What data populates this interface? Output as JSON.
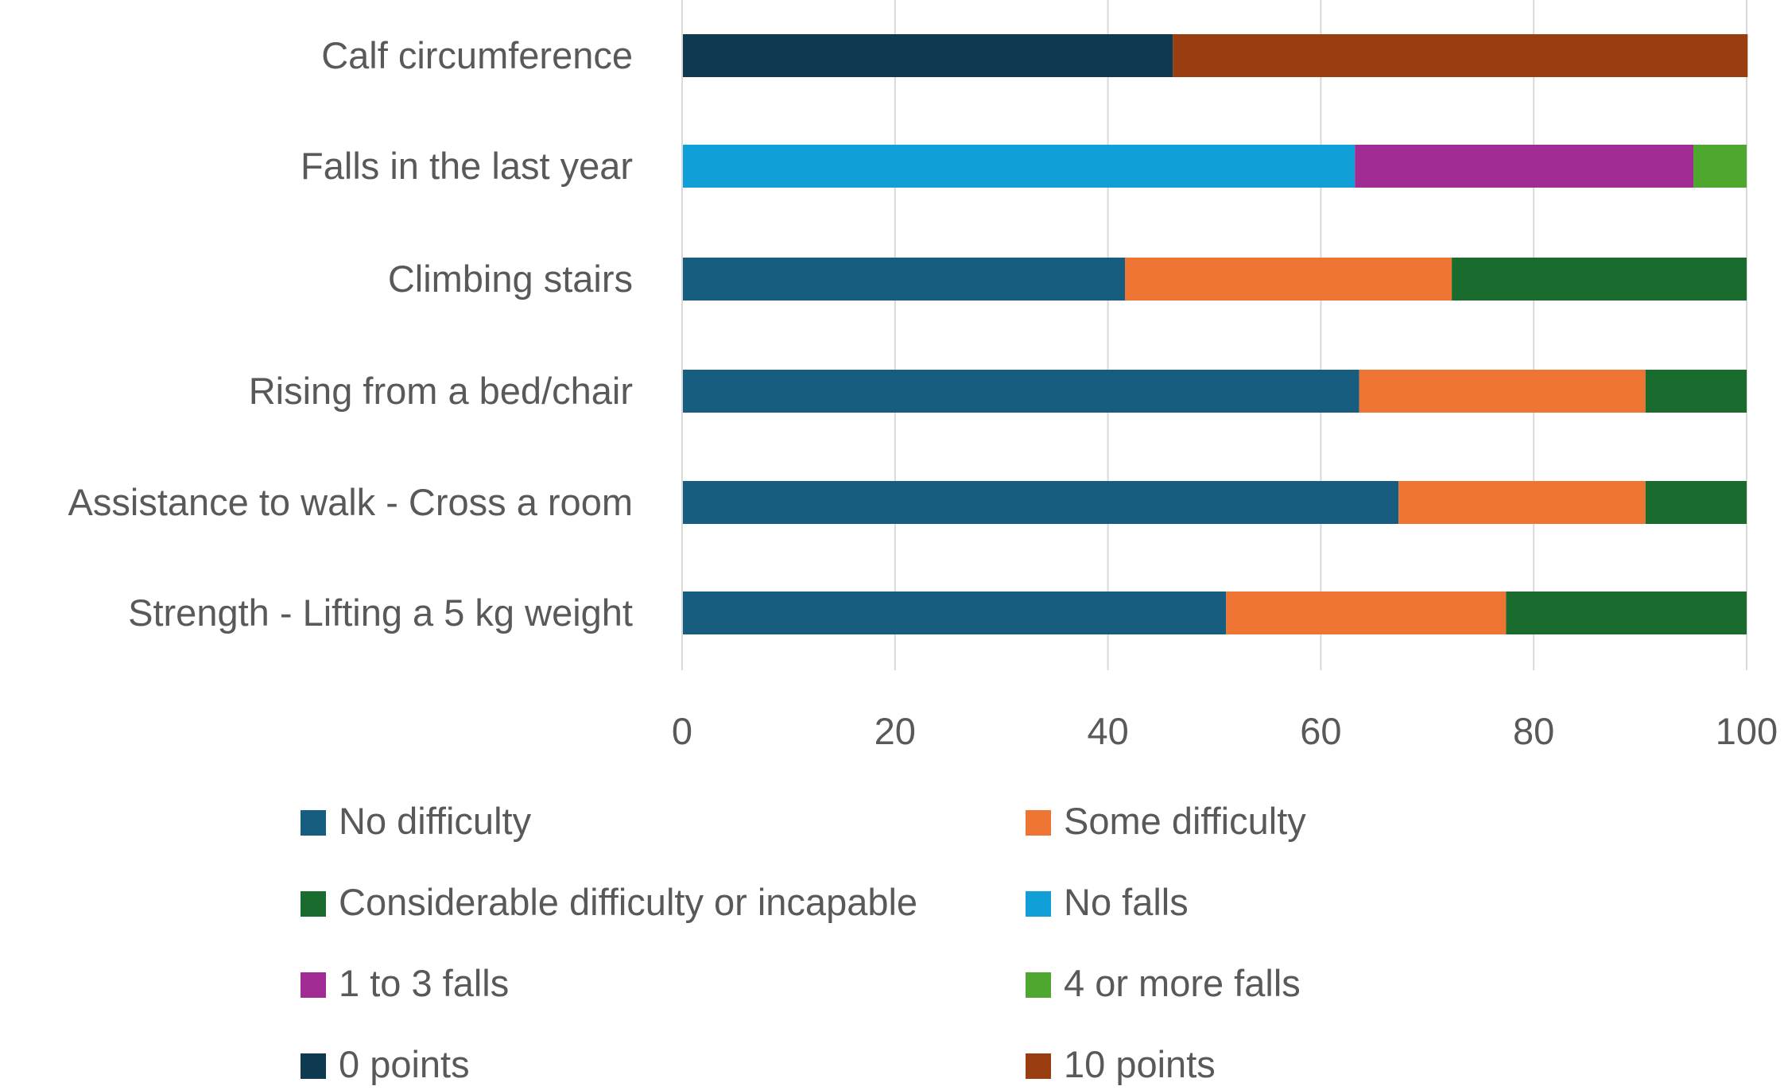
{
  "chart_data": {
    "type": "bar",
    "orientation": "horizontal",
    "stacked": true,
    "title": "",
    "xlabel": "",
    "ylabel": "",
    "xlim": [
      0,
      100
    ],
    "xticks": [
      0,
      20,
      40,
      60,
      80,
      100
    ],
    "grid": true,
    "legend_position": "bottom",
    "categories": [
      "Calf circumference",
      "Falls in the last year",
      "Climbing stairs",
      "Rising from a bed/chair",
      "Assistance to walk - Cross a room",
      "Strength - Lifting a 5 kg weight"
    ],
    "series": [
      {
        "name": "No difficulty",
        "color": "#175d80",
        "values": [
          0,
          0,
          41.6,
          63.6,
          67.3,
          51.1
        ]
      },
      {
        "name": "Some difficulty",
        "color": "#ed7433",
        "values": [
          0,
          0,
          30.7,
          26.9,
          23.2,
          26.3
        ]
      },
      {
        "name": "Considerable difficulty or incapable",
        "color": "#1a6b2e",
        "values": [
          0,
          0,
          27.7,
          9.5,
          9.5,
          22.6
        ]
      },
      {
        "name": "No falls",
        "color": "#119fd8",
        "values": [
          0,
          63.2,
          0,
          0,
          0,
          0
        ]
      },
      {
        "name": "1 to 3 falls",
        "color": "#a02b93",
        "values": [
          0,
          31.8,
          0,
          0,
          0,
          0
        ]
      },
      {
        "name": "4 or more falls",
        "color": "#4ea72e",
        "values": [
          0,
          5.0,
          0,
          0,
          0,
          0
        ]
      },
      {
        "name": "0 points",
        "color": "#0e3a51",
        "values": [
          46.1,
          0,
          0,
          0,
          0,
          0
        ]
      },
      {
        "name": "10 points",
        "color": "#9a3e11",
        "values": [
          54.0,
          0,
          0,
          0,
          0,
          0
        ]
      }
    ]
  }
}
